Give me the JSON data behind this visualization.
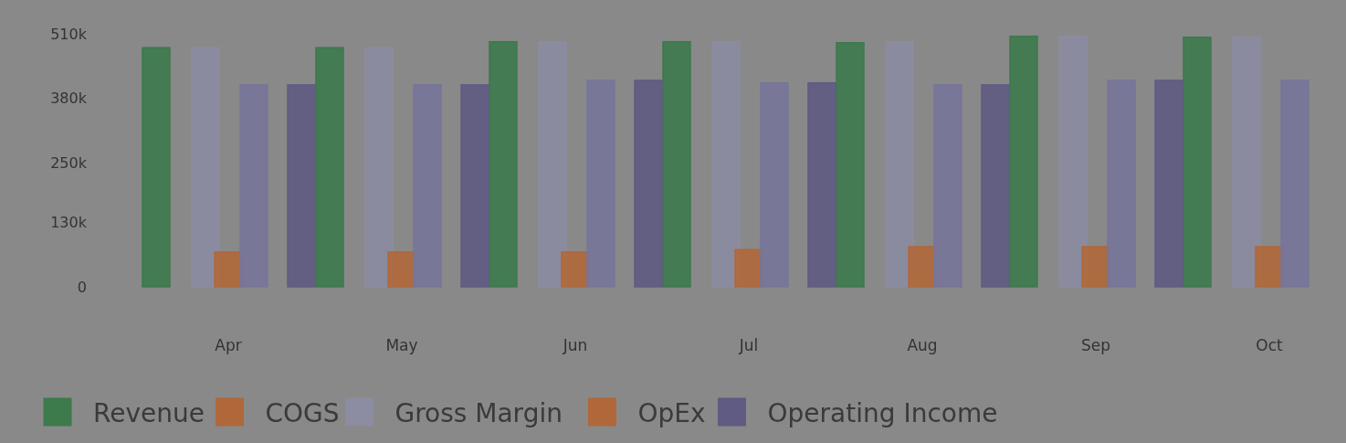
{
  "chart_data": {
    "type": "bar",
    "categories": [
      "Apr",
      "May",
      "Jun",
      "Jul",
      "Aug",
      "Sep",
      "Oct"
    ],
    "series": [
      {
        "name": "Revenue",
        "color": "#3d7a4c",
        "values": [
          482000,
          482000,
          494000,
          494000,
          492000,
          505000,
          503000
        ]
      },
      {
        "name": "COGS",
        "color": "#b0683a",
        "values": [
          0,
          0,
          0,
          0,
          0,
          0,
          0
        ]
      },
      {
        "name": "Gross Margin",
        "color": "#8c8ca2",
        "values": [
          482000,
          482000,
          494000,
          494000,
          494000,
          505000,
          503000
        ]
      },
      {
        "name": "OpEx",
        "color": "#b0683a",
        "values": [
          70000,
          70000,
          70000,
          75000,
          81000,
          81000,
          81000
        ]
      },
      {
        "name": "Operating Income",
        "color": "#5f5b82",
        "values": [
          407000,
          407000,
          416000,
          411000,
          407000,
          416000,
          null
        ]
      },
      {
        "color": "#77759a",
        "values": [
          407000,
          407000,
          416000,
          411000,
          407000,
          416000,
          416000
        ]
      }
    ],
    "ylim": [
      0,
      510000
    ],
    "yticks": [
      {
        "value": 0,
        "label": "0"
      },
      {
        "value": 130000,
        "label": "130k"
      },
      {
        "value": 250000,
        "label": "250k"
      },
      {
        "value": 380000,
        "label": "380k"
      },
      {
        "value": 510000,
        "label": "510k"
      }
    ],
    "grid": false,
    "legend": "bottom"
  }
}
